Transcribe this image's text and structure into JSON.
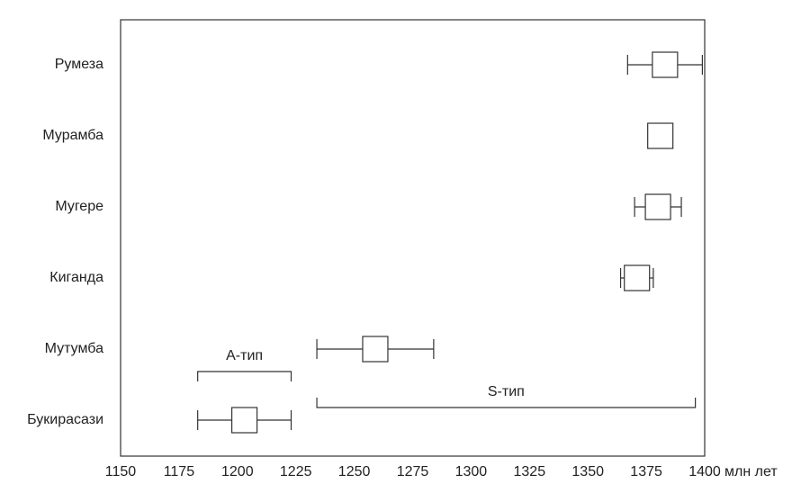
{
  "chart_data": {
    "type": "errorbox",
    "categories": [
      "Румеза",
      "Мурамба",
      "Мугере",
      "Киганда",
      "Мутумба",
      "Букирасази"
    ],
    "values": [
      1383,
      1381,
      1380,
      1371,
      1259,
      1203
    ],
    "errors": [
      16,
      4,
      10,
      7,
      25,
      20
    ],
    "xlim": [
      1150,
      1400
    ],
    "xticks": [
      1150,
      1175,
      1200,
      1225,
      1250,
      1275,
      1300,
      1325,
      1350,
      1375,
      1400
    ],
    "xlabel": "млн лет",
    "annotations": [
      {
        "text": "А-тип",
        "range": [
          1183,
          1223
        ],
        "row": 5,
        "side": "above"
      },
      {
        "text": "S-тип",
        "range": [
          1234,
          1396
        ],
        "row": 5,
        "side": "above"
      }
    ],
    "color": "#333333"
  }
}
